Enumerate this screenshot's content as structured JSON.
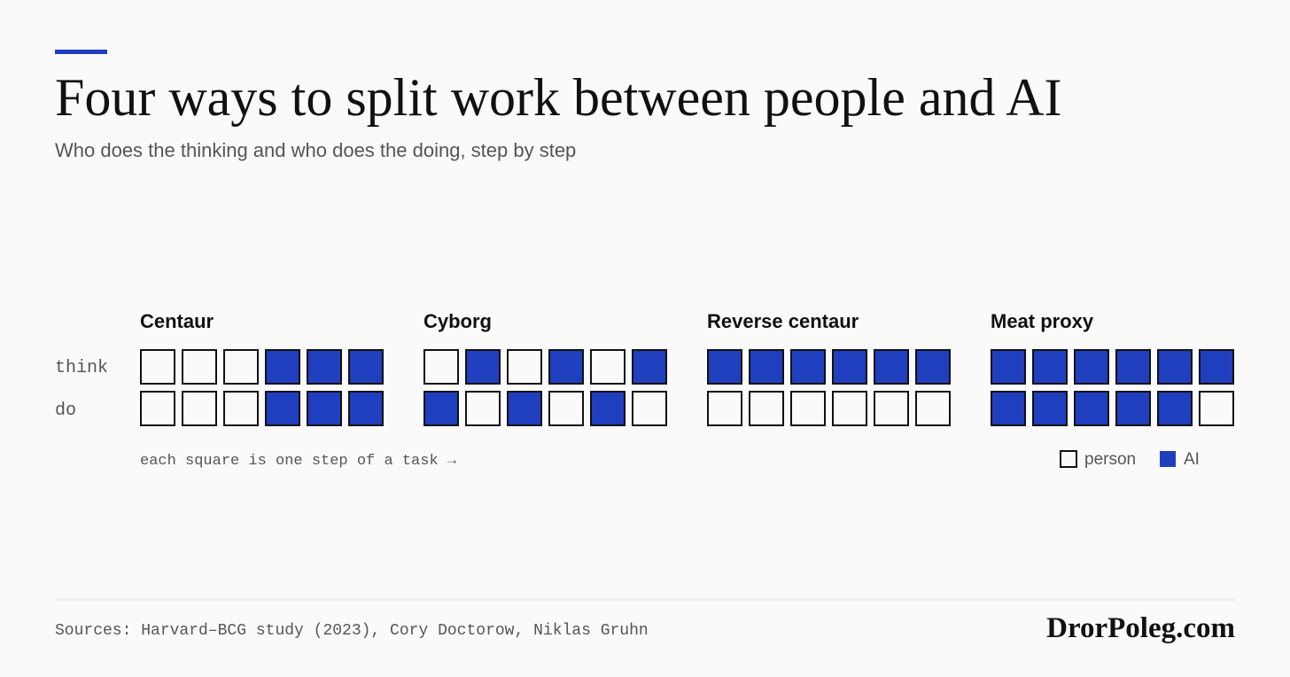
{
  "header": {
    "title": "Four ways to split work between people and AI",
    "subtitle": "Who does the thinking and who does the doing, step by step"
  },
  "row_labels": [
    "think",
    "do"
  ],
  "legend": [
    {
      "label": "person",
      "color": "#fafafa"
    },
    {
      "label": "AI",
      "color": "#1f3fbf"
    }
  ],
  "groups": [
    {
      "name": "Centaur",
      "think": [
        0,
        0,
        0,
        1,
        1,
        1
      ],
      "do": [
        0,
        0,
        0,
        1,
        1,
        1
      ]
    },
    {
      "name": "Cyborg",
      "think": [
        0,
        1,
        0,
        1,
        0,
        1
      ],
      "do": [
        1,
        0,
        1,
        0,
        1,
        0
      ]
    },
    {
      "name": "Reverse centaur",
      "think": [
        1,
        1,
        1,
        1,
        1,
        1
      ],
      "do": [
        0,
        0,
        0,
        0,
        0,
        0
      ]
    },
    {
      "name": "Meat proxy",
      "think": [
        1,
        1,
        1,
        1,
        1,
        1
      ],
      "do": [
        1,
        1,
        1,
        1,
        1,
        0
      ]
    }
  ],
  "note": "each square is one step of a task →",
  "footer": {
    "sources": "Sources: Harvard–BCG study (2023), Cory Doctorow, Niklas Gruhn",
    "brand": "DrorPoleg.com"
  }
}
